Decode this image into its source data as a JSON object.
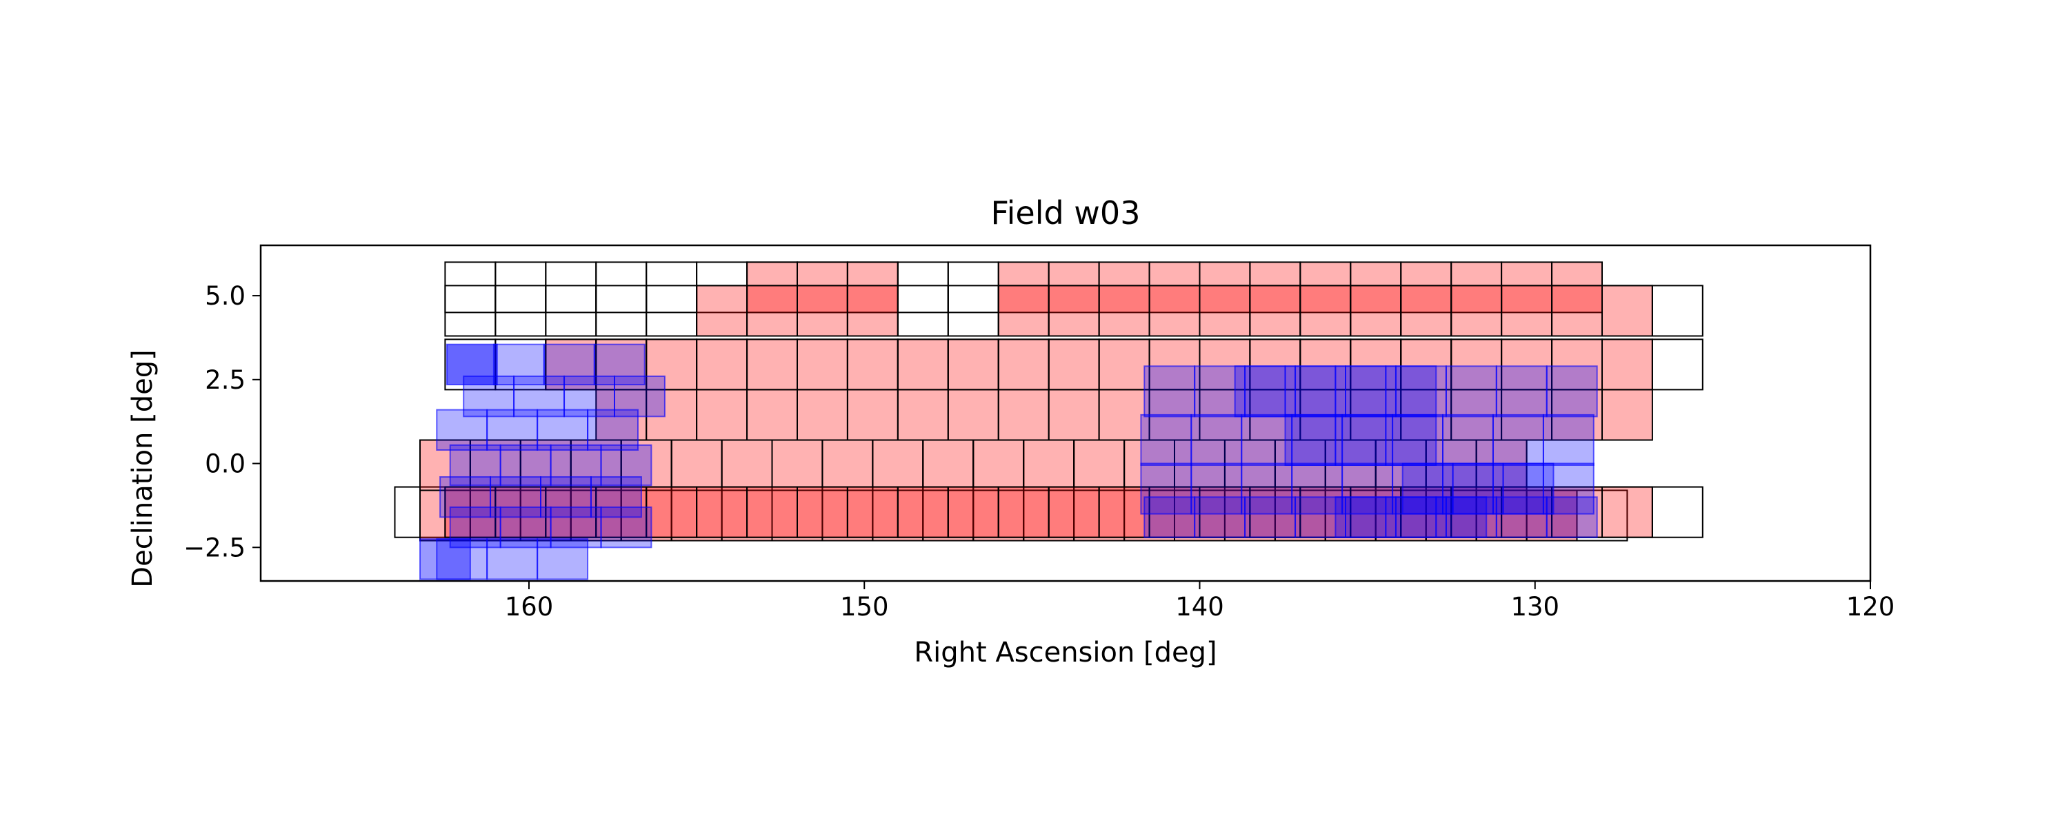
{
  "chart_data": {
    "type": "heatmap",
    "title": "Field w03",
    "xlabel": "Right Ascension [deg]",
    "ylabel": "Declination [deg]",
    "xlim": [
      168,
      120
    ],
    "ylim": [
      -3.5,
      6.5
    ],
    "x_ticks": [
      {
        "value": 160,
        "label": "160"
      },
      {
        "value": 150,
        "label": "150"
      },
      {
        "value": 140,
        "label": "140"
      },
      {
        "value": 130,
        "label": "130"
      },
      {
        "value": 120,
        "label": "120"
      }
    ],
    "y_ticks": [
      {
        "value": 5.0,
        "label": "5.0"
      },
      {
        "value": 2.5,
        "label": "2.5"
      },
      {
        "value": 0.0,
        "label": "0.0"
      },
      {
        "value": -2.5,
        "label": "-2.5"
      }
    ],
    "grid": false,
    "colors": {
      "observed_fill": "#ff0000",
      "observed_alpha": 0.3,
      "outline": "#000000",
      "overlay": "#0000ff",
      "overlay_alpha": 0.3
    },
    "series": [
      {
        "kind": "outline",
        "tiles": [
          {
            "ra": 161.75,
            "ra_w": 1.5,
            "dec": 5.25,
            "dec_h": 1.5,
            "count": 11
          },
          {
            "ra": 161.75,
            "ra_w": 1.5,
            "dec": 2.95,
            "dec_h": 1.5,
            "count": 25
          },
          {
            "ra": 162.5,
            "ra_w": 1.5,
            "dec": -0.05,
            "dec_h": 1.5,
            "count": 22
          },
          {
            "ra": 162.5,
            "ra_w": 1.5,
            "dec": -1.55,
            "dec_h": 1.5,
            "count": 24
          },
          {
            "ra": 161.75,
            "ra_w": 1.5,
            "dec": 4.55,
            "dec_h": 1.5,
            "count": 25
          },
          {
            "ra": 163.25,
            "ra_w": 1.5,
            "dec": -1.45,
            "dec_h": 1.5,
            "count": 26
          }
        ]
      },
      {
        "kind": "observed",
        "tiles": [
          {
            "ra": 152.75,
            "ra_w": 1.5,
            "dec": 5.25,
            "dec_h": 1.5,
            "count": 3
          },
          {
            "ra": 145.25,
            "ra_w": 1.5,
            "dec": 5.25,
            "dec_h": 1.5,
            "count": 12
          },
          {
            "ra": 154.25,
            "ra_w": 1.5,
            "dec": 4.55,
            "dec_h": 1.5,
            "count": 4
          },
          {
            "ra": 145.25,
            "ra_w": 1.5,
            "dec": 4.55,
            "dec_h": 1.5,
            "count": 13
          },
          {
            "ra": 158.75,
            "ra_w": 1.5,
            "dec": 2.95,
            "dec_h": 1.5,
            "count": 22
          },
          {
            "ra": 157.25,
            "ra_w": 1.5,
            "dec": 1.45,
            "dec_h": 1.5,
            "count": 21
          },
          {
            "ra": 162.5,
            "ra_w": 1.5,
            "dec": -0.05,
            "dec_h": 1.5,
            "count": 22
          },
          {
            "ra": 162.5,
            "ra_w": 1.5,
            "dec": -1.55,
            "dec_h": 1.5,
            "count": 23
          },
          {
            "ra": 161.75,
            "ra_w": 1.5,
            "dec": -1.45,
            "dec_h": 1.5,
            "count": 24
          }
        ]
      },
      {
        "kind": "overlay",
        "tiles": [
          {
            "ra": 161.7,
            "ra_w": 1.5,
            "dec": 2.95,
            "dec_h": 1.2,
            "count": 1,
            "alpha": 0.6
          },
          {
            "ra": 160.3,
            "ra_w": 1.5,
            "dec": 2.95,
            "dec_h": 1.2,
            "count": 3
          },
          {
            "ra": 161.2,
            "ra_w": 1.5,
            "dec": 2.0,
            "dec_h": 1.2,
            "count": 4
          },
          {
            "ra": 162.0,
            "ra_w": 1.5,
            "dec": 1.0,
            "dec_h": 1.2,
            "count": 4
          },
          {
            "ra": 161.6,
            "ra_w": 1.5,
            "dec": -0.05,
            "dec_h": 1.2,
            "count": 4
          },
          {
            "ra": 161.9,
            "ra_w": 1.5,
            "dec": -1.0,
            "dec_h": 1.2,
            "count": 4
          },
          {
            "ra": 161.6,
            "ra_w": 1.5,
            "dec": -1.9,
            "dec_h": 1.2,
            "count": 4
          },
          {
            "ra": 162.0,
            "ra_w": 1.5,
            "dec": -2.85,
            "dec_h": 1.2,
            "count": 3
          },
          {
            "ra": 162.5,
            "ra_w": 1.5,
            "dec": -2.85,
            "dec_h": 1.2,
            "count": 1,
            "alpha": 0.4
          },
          {
            "ra": 140.9,
            "ra_w": 1.5,
            "dec": 2.15,
            "dec_h": 1.5,
            "count": 9
          },
          {
            "ra": 141.0,
            "ra_w": 1.5,
            "dec": 0.7,
            "dec_h": 1.5,
            "count": 9
          },
          {
            "ra": 141.0,
            "ra_w": 1.5,
            "dec": -0.75,
            "dec_h": 1.5,
            "count": 9
          },
          {
            "ra": 140.9,
            "ra_w": 1.5,
            "dec": -1.6,
            "dec_h": 1.2,
            "count": 9
          },
          {
            "ra": 138.2,
            "ra_w": 1.5,
            "dec": 2.15,
            "dec_h": 1.5,
            "count": 4
          },
          {
            "ra": 136.7,
            "ra_w": 1.5,
            "dec": 0.7,
            "dec_h": 1.5,
            "count": 3
          },
          {
            "ra": 133.2,
            "ra_w": 1.5,
            "dec": -0.75,
            "dec_h": 1.5,
            "count": 3
          },
          {
            "ra": 135.2,
            "ra_w": 1.5,
            "dec": -1.6,
            "dec_h": 1.2,
            "count": 3
          }
        ]
      }
    ]
  }
}
